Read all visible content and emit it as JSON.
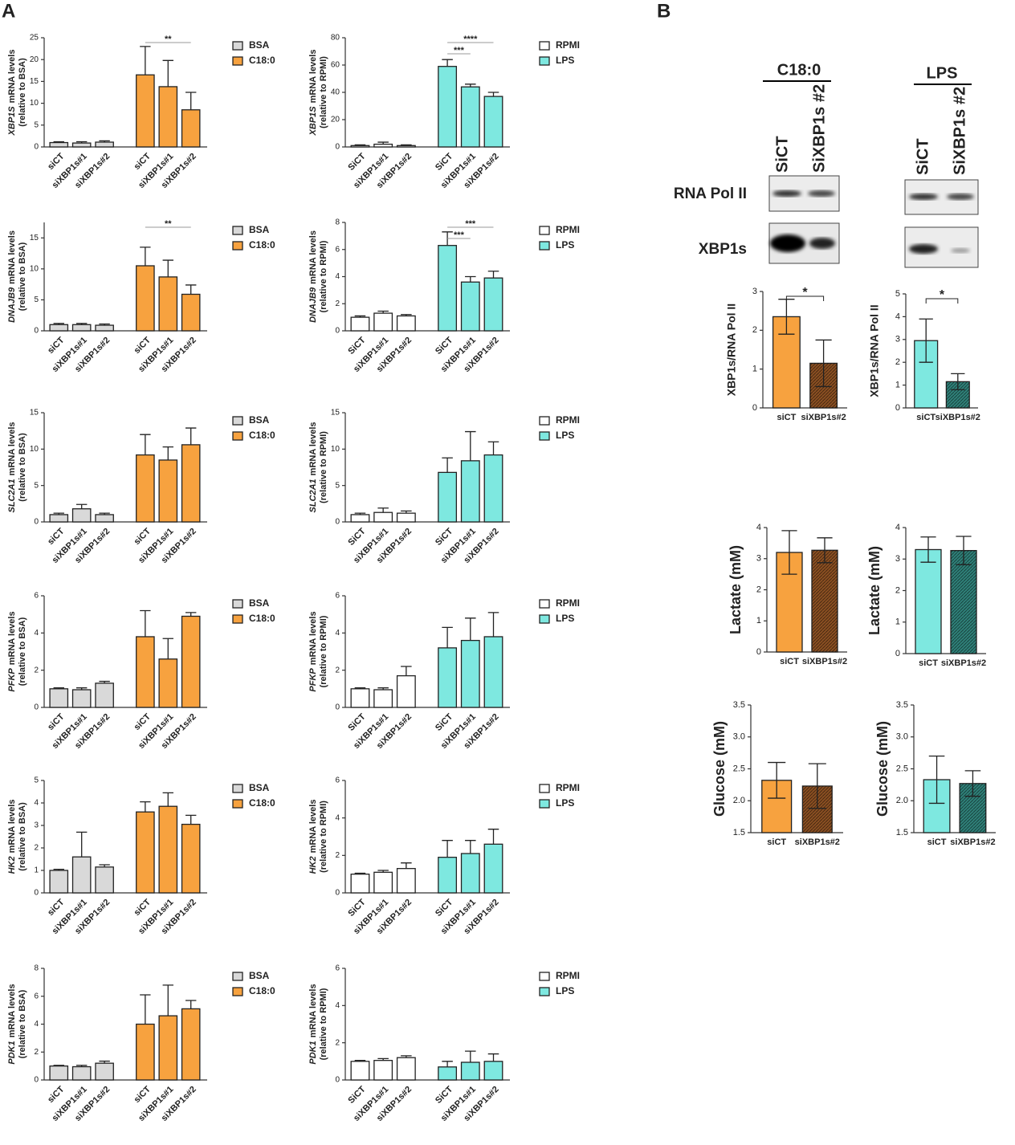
{
  "panels": {
    "a": "A",
    "b": "B"
  },
  "blot": {
    "groups": [
      "C18:0",
      "LPS"
    ],
    "lanes_c18": [
      "SiCT",
      "SiXBP1s #2"
    ],
    "lanes_lps": [
      "SiCT",
      "SiXBP1s #2"
    ],
    "rows": [
      "RNA Pol II",
      "XBP1s"
    ]
  },
  "chart_data": [
    {
      "type": "bar",
      "gene": "XBP1S",
      "ylabel": "mRNA levels",
      "ylabel2": "(relative to BSA)",
      "categories": [
        "siCT",
        "siXBP1s#1",
        "siXBP1s#2",
        "siCT",
        "siXBP1s#1",
        "siXBP1s#2"
      ],
      "ylim": [
        0,
        25
      ],
      "yticks": [
        0,
        5,
        10,
        15,
        20,
        25
      ],
      "error_direction": "up",
      "annotations": [
        "**"
      ],
      "series": [
        {
          "name": "BSA",
          "color": "#d9d9d9",
          "values": [
            1,
            0.9,
            1.1,
            null,
            null,
            null
          ],
          "errors": [
            0.2,
            0.3,
            0.3,
            null,
            null,
            null
          ]
        },
        {
          "name": "C18:0",
          "color": "#f7a23f",
          "values": [
            null,
            null,
            null,
            16.5,
            13.8,
            8.5
          ],
          "errors": [
            null,
            null,
            null,
            6.5,
            6,
            4
          ]
        }
      ]
    },
    {
      "type": "bar",
      "gene": "XBP1S",
      "ylabel": "mRNA levels",
      "ylabel2": "(relative to RPMI)",
      "categories": [
        "SiCT",
        "siXBP1s#1",
        "siXBP1s#2",
        "SiCT",
        "siXBP1s#1",
        "siXBP1s#2"
      ],
      "ylim": [
        0,
        80
      ],
      "yticks": [
        0,
        20,
        40,
        60,
        80
      ],
      "error_direction": "up",
      "annotations": [
        "***",
        "****"
      ],
      "series": [
        {
          "name": "RPMI",
          "color": "#ffffff",
          "values": [
            1,
            2,
            1,
            null,
            null,
            null
          ],
          "errors": [
            0.5,
            1.5,
            0.5,
            null,
            null,
            null
          ]
        },
        {
          "name": "LPS",
          "color": "#7ee8e0",
          "values": [
            null,
            null,
            null,
            59,
            44,
            37
          ],
          "errors": [
            null,
            null,
            null,
            5,
            2,
            3
          ]
        }
      ]
    },
    {
      "type": "bar",
      "gene": "DNAJB9",
      "ylabel": "mRNA levels",
      "ylabel2": "(relative to BSA)",
      "categories": [
        "siCT",
        "siXBP1s#1",
        "siXBP1s#2",
        "siCT",
        "siXBP1s#1",
        "siXBP1s#2"
      ],
      "ylim": [
        0,
        17.5
      ],
      "yticks": [
        0,
        5,
        10,
        15
      ],
      "error_direction": "up",
      "annotations": [
        "**"
      ],
      "series": [
        {
          "name": "BSA",
          "color": "#d9d9d9",
          "values": [
            1,
            1,
            0.9,
            null,
            null,
            null
          ],
          "errors": [
            0.2,
            0.2,
            0.2,
            null,
            null,
            null
          ]
        },
        {
          "name": "C18:0",
          "color": "#f7a23f",
          "values": [
            null,
            null,
            null,
            10.5,
            8.7,
            5.9
          ],
          "errors": [
            null,
            null,
            null,
            3,
            2.7,
            1.5
          ]
        }
      ]
    },
    {
      "type": "bar",
      "gene": "DNAJB9",
      "ylabel": "mRNA levels",
      "ylabel2": "(relative to RPMI)",
      "categories": [
        "SiCT",
        "siXBP1s#1",
        "siXBP1s#2",
        "SiCT",
        "siXBP1s#1",
        "siXBP1s#2"
      ],
      "ylim": [
        0,
        8
      ],
      "yticks": [
        0,
        2,
        4,
        6,
        8
      ],
      "error_direction": "up",
      "annotations": [
        "***",
        "***"
      ],
      "series": [
        {
          "name": "RPMI",
          "color": "#ffffff",
          "values": [
            1,
            1.3,
            1.1,
            null,
            null,
            null
          ],
          "errors": [
            0.1,
            0.15,
            0.1,
            null,
            null,
            null
          ]
        },
        {
          "name": "LPS",
          "color": "#7ee8e0",
          "values": [
            null,
            null,
            null,
            6.3,
            3.6,
            3.9
          ],
          "errors": [
            null,
            null,
            null,
            1,
            0.4,
            0.5
          ]
        }
      ]
    },
    {
      "type": "bar",
      "gene": "SLC2A1",
      "ylabel": "mRNA levels",
      "ylabel2": "(relative to BSA)",
      "categories": [
        "siCT",
        "siXBP1s#1",
        "siXBP1s#2",
        "siCT",
        "siXBP1s#1",
        "siXBP1s#2"
      ],
      "ylim": [
        0,
        15
      ],
      "yticks": [
        0,
        5,
        10,
        15
      ],
      "error_direction": "up",
      "annotations": [],
      "series": [
        {
          "name": "BSA",
          "color": "#d9d9d9",
          "values": [
            1,
            1.8,
            1,
            null,
            null,
            null
          ],
          "errors": [
            0.2,
            0.6,
            0.2,
            null,
            null,
            null
          ]
        },
        {
          "name": "C18:0",
          "color": "#f7a23f",
          "values": [
            null,
            null,
            null,
            9.2,
            8.5,
            10.6
          ],
          "errors": [
            null,
            null,
            null,
            2.8,
            1.8,
            2.3
          ]
        }
      ]
    },
    {
      "type": "bar",
      "gene": "SLC2A1",
      "ylabel": "mRNA levels",
      "ylabel2": "(relative to RPMI)",
      "categories": [
        "SiCT",
        "siXBP1s#1",
        "siXBP1s#2",
        "SiCT",
        "siXBP1s#1",
        "siXBP1s#2"
      ],
      "ylim": [
        0,
        15
      ],
      "yticks": [
        0,
        5,
        10,
        15
      ],
      "error_direction": "up",
      "annotations": [],
      "series": [
        {
          "name": "RPMI",
          "color": "#ffffff",
          "values": [
            1,
            1.3,
            1.2,
            null,
            null,
            null
          ],
          "errors": [
            0.2,
            0.6,
            0.3,
            null,
            null,
            null
          ]
        },
        {
          "name": "LPS",
          "color": "#7ee8e0",
          "values": [
            null,
            null,
            null,
            6.8,
            8.4,
            9.2
          ],
          "errors": [
            null,
            null,
            null,
            2,
            4,
            1.8
          ]
        }
      ]
    },
    {
      "type": "bar",
      "gene": "PFKP",
      "ylabel": "mRNA levels",
      "ylabel2": "(relative to BSA)",
      "categories": [
        "siCT",
        "siXBP1s#1",
        "siXBP1s#2",
        "siCT",
        "siXBP1s#1",
        "siXBP1s#2"
      ],
      "ylim": [
        0,
        6
      ],
      "yticks": [
        0,
        2,
        4,
        6
      ],
      "error_direction": "up",
      "annotations": [],
      "series": [
        {
          "name": "BSA",
          "color": "#d9d9d9",
          "values": [
            1,
            0.95,
            1.3,
            null,
            null,
            null
          ],
          "errors": [
            0.05,
            0.1,
            0.1,
            null,
            null,
            null
          ]
        },
        {
          "name": "C18:0",
          "color": "#f7a23f",
          "values": [
            null,
            null,
            null,
            3.8,
            2.6,
            4.9
          ],
          "errors": [
            null,
            null,
            null,
            1.4,
            1.1,
            0.2
          ]
        }
      ]
    },
    {
      "type": "bar",
      "gene": "PFKP",
      "ylabel": "mRNA levels",
      "ylabel2": "(relative to RPMI)",
      "categories": [
        "SiCT",
        "siXBP1s#1",
        "siXBP1s#2",
        "SiCT",
        "siXBP1s#1",
        "siXBP1s#2"
      ],
      "ylim": [
        0,
        6
      ],
      "yticks": [
        0,
        2,
        4,
        6
      ],
      "error_direction": "up",
      "annotations": [],
      "series": [
        {
          "name": "RPMI",
          "color": "#ffffff",
          "values": [
            1,
            0.95,
            1.7,
            null,
            null,
            null
          ],
          "errors": [
            0.05,
            0.1,
            0.5,
            null,
            null,
            null
          ]
        },
        {
          "name": "LPS",
          "color": "#7ee8e0",
          "values": [
            null,
            null,
            null,
            3.2,
            3.6,
            3.8
          ],
          "errors": [
            null,
            null,
            null,
            1.1,
            1.2,
            1.3
          ]
        }
      ]
    },
    {
      "type": "bar",
      "gene": "HK2",
      "ylabel": "mRNA levels",
      "ylabel2": "(relative to BSA)",
      "categories": [
        "siCT",
        "siXBP1s#1",
        "siXBP1s#2",
        "siCT",
        "siXBP1s#1",
        "siXBP1s#2"
      ],
      "ylim": [
        0,
        5
      ],
      "yticks": [
        0,
        1,
        2,
        3,
        4,
        5
      ],
      "error_direction": "up",
      "annotations": [],
      "series": [
        {
          "name": "BSA",
          "color": "#d9d9d9",
          "values": [
            1,
            1.6,
            1.15,
            null,
            null,
            null
          ],
          "errors": [
            0.05,
            1.1,
            0.1,
            null,
            null,
            null
          ]
        },
        {
          "name": "C18:0",
          "color": "#f7a23f",
          "values": [
            null,
            null,
            null,
            3.6,
            3.85,
            3.05
          ],
          "errors": [
            null,
            null,
            null,
            0.45,
            0.6,
            0.4
          ]
        }
      ]
    },
    {
      "type": "bar",
      "gene": "HK2",
      "ylabel": "mRNA levels",
      "ylabel2": "(relative to RPMI)",
      "categories": [
        "SiCT",
        "siXBP1s#1",
        "siXBP1s#2",
        "SiCT",
        "siXBP1s#1",
        "siXBP1s#2"
      ],
      "ylim": [
        0,
        6
      ],
      "yticks": [
        0,
        2,
        4,
        6
      ],
      "error_direction": "up",
      "annotations": [],
      "series": [
        {
          "name": "RPMI",
          "color": "#ffffff",
          "values": [
            1,
            1.1,
            1.3,
            null,
            null,
            null
          ],
          "errors": [
            0.05,
            0.1,
            0.3,
            null,
            null,
            null
          ]
        },
        {
          "name": "LPS",
          "color": "#7ee8e0",
          "values": [
            null,
            null,
            null,
            1.9,
            2.1,
            2.6
          ],
          "errors": [
            null,
            null,
            null,
            0.9,
            0.7,
            0.8
          ]
        }
      ]
    },
    {
      "type": "bar",
      "gene": "PDK1",
      "ylabel": "mRNA levels",
      "ylabel2": "(relative to BSA)",
      "categories": [
        "siCT",
        "siXBP1s#1",
        "siXBP1s#2",
        "siCT",
        "siXBP1s#1",
        "siXBP1s#2"
      ],
      "ylim": [
        0,
        8
      ],
      "yticks": [
        0,
        2,
        4,
        6,
        8
      ],
      "error_direction": "up",
      "annotations": [],
      "series": [
        {
          "name": "BSA",
          "color": "#d9d9d9",
          "values": [
            1,
            0.95,
            1.2,
            null,
            null,
            null
          ],
          "errors": [
            0.05,
            0.1,
            0.15,
            null,
            null,
            null
          ]
        },
        {
          "name": "C18:0",
          "color": "#f7a23f",
          "values": [
            null,
            null,
            null,
            4,
            4.6,
            5.1
          ],
          "errors": [
            null,
            null,
            null,
            2.1,
            2.2,
            0.6
          ]
        }
      ]
    },
    {
      "type": "bar",
      "gene": "PDK1",
      "ylabel": "mRNA levels",
      "ylabel2": "(relative to RPMI)",
      "categories": [
        "SiCT",
        "siXBP1s#1",
        "siXBP1s#2",
        "SiCT",
        "siXBP1s#1",
        "siXBP1s#2"
      ],
      "ylim": [
        0,
        6
      ],
      "yticks": [
        0,
        2,
        4,
        6
      ],
      "error_direction": "up",
      "annotations": [],
      "series": [
        {
          "name": "RPMI",
          "color": "#ffffff",
          "values": [
            1,
            1.05,
            1.2,
            null,
            null,
            null
          ],
          "errors": [
            0.05,
            0.1,
            0.1,
            null,
            null,
            null
          ]
        },
        {
          "name": "LPS",
          "color": "#7ee8e0",
          "values": [
            null,
            null,
            null,
            0.7,
            0.95,
            1
          ],
          "errors": [
            null,
            null,
            null,
            0.3,
            0.6,
            0.4
          ]
        }
      ]
    },
    {
      "type": "bar",
      "ylabel": "XBP1s/RNA Pol II",
      "categories": [
        "siCT",
        "siXBP1s#2"
      ],
      "ylim": [
        0,
        3
      ],
      "yticks": [
        0,
        1,
        2,
        3
      ],
      "error_direction": "both",
      "annotations": [
        "*"
      ],
      "values": [
        2.35,
        1.15
      ],
      "errors": [
        0.45,
        0.6
      ],
      "colors": [
        "#f7a23f",
        "#8a4f22"
      ],
      "hatch": [
        false,
        true
      ]
    },
    {
      "type": "bar",
      "ylabel": "XBP1s/RNA Pol II",
      "categories": [
        "siCT",
        "siXBP1s#2"
      ],
      "ylim": [
        0,
        5
      ],
      "yticks": [
        0,
        1,
        2,
        3,
        4,
        5
      ],
      "error_direction": "both",
      "annotations": [
        "*"
      ],
      "values": [
        2.95,
        1.15
      ],
      "errors": [
        0.95,
        0.35
      ],
      "colors": [
        "#7ee8e0",
        "#2f8078"
      ],
      "hatch": [
        false,
        true
      ]
    },
    {
      "type": "bar",
      "ylabel": "Lactate (mM)",
      "categories": [
        "siCT",
        "siXBP1s#2"
      ],
      "ylim": [
        0,
        4
      ],
      "yticks": [
        0,
        1,
        2,
        3,
        4
      ],
      "error_direction": "both",
      "annotations": [],
      "values": [
        3.2,
        3.27
      ],
      "errors": [
        0.7,
        0.4
      ],
      "colors": [
        "#f7a23f",
        "#8a4f22"
      ],
      "hatch": [
        false,
        true
      ]
    },
    {
      "type": "bar",
      "ylabel": "Lactate (mM)",
      "categories": [
        "siCT",
        "siXBP1s#2"
      ],
      "ylim": [
        0,
        4
      ],
      "yticks": [
        0,
        1,
        2,
        3,
        4
      ],
      "error_direction": "both",
      "annotations": [],
      "values": [
        3.3,
        3.27
      ],
      "errors": [
        0.4,
        0.45
      ],
      "colors": [
        "#7ee8e0",
        "#2f8078"
      ],
      "hatch": [
        false,
        true
      ]
    },
    {
      "type": "bar",
      "ylabel": "Glucose (mM)",
      "categories": [
        "siCT",
        "siXBP1s#2"
      ],
      "ylim": [
        1.5,
        3.5
      ],
      "yticks": [
        1.5,
        {
          "value": 2,
          "label": "2.0"
        },
        2.5,
        {
          "value": 3,
          "label": "3.0"
        },
        3.5
      ],
      "error_direction": "both",
      "annotations": [],
      "values": [
        2.32,
        2.23
      ],
      "errors": [
        0.28,
        0.35
      ],
      "colors": [
        "#f7a23f",
        "#8a4f22"
      ],
      "hatch": [
        false,
        true
      ]
    },
    {
      "type": "bar",
      "ylabel": "Glucose (mM)",
      "categories": [
        "siCT",
        "siXBP1s#2"
      ],
      "ylim": [
        1.5,
        3.5
      ],
      "yticks": [
        1.5,
        {
          "value": 2,
          "label": "2.0"
        },
        2.5,
        {
          "value": 3,
          "label": "3.0"
        },
        3.5
      ],
      "error_direction": "both",
      "annotations": [],
      "values": [
        2.33,
        2.27
      ],
      "errors": [
        0.37,
        0.2
      ],
      "colors": [
        "#7ee8e0",
        "#2f8078"
      ],
      "hatch": [
        false,
        true
      ]
    }
  ]
}
